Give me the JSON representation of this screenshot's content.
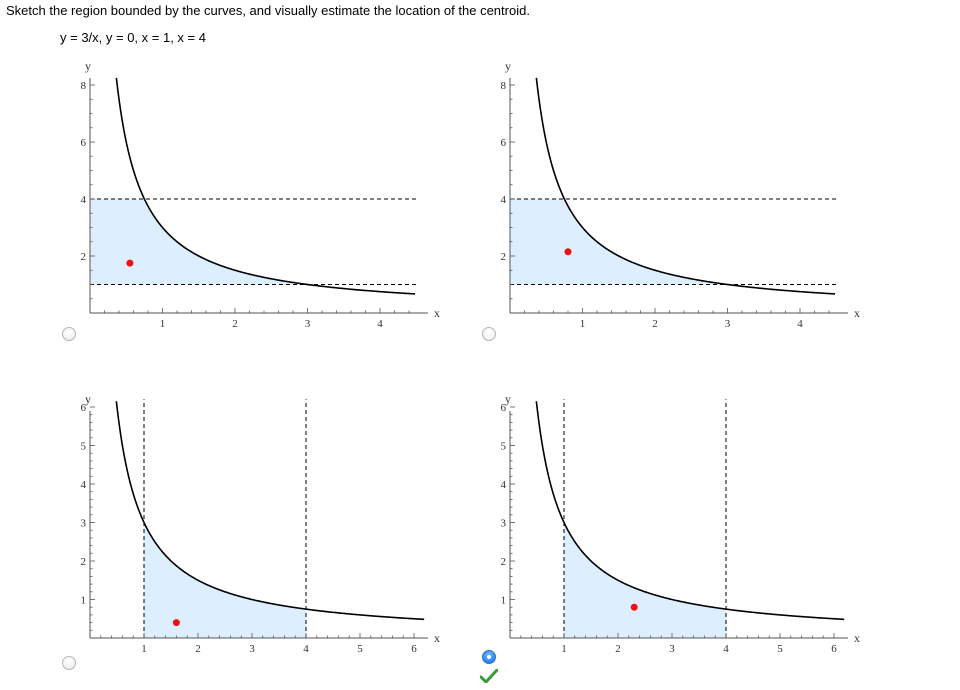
{
  "question": {
    "text": "Sketch the region bounded by the curves, and visually estimate the location of the centroid.",
    "equation": "y = 3/x,  y = 0,  x = 1,  x = 4"
  },
  "options": [
    {
      "id": "option-1",
      "selected": false,
      "correct": false,
      "chart_data": {
        "type": "area",
        "curve": "y = 3/x",
        "region": "between y = 1 and y = 4, left of curve",
        "xlabel": "x",
        "ylabel": "y",
        "xlim": [
          0,
          4.5
        ],
        "ylim": [
          0,
          8.3
        ],
        "xticks": [
          "1",
          "2",
          "3",
          "4"
        ],
        "yticks": [
          "2",
          "4",
          "6",
          "8"
        ],
        "xtick_values": [
          1,
          2,
          3,
          4
        ],
        "ytick_values": [
          2,
          4,
          6,
          8
        ],
        "dashed_lines": [
          "y = 1",
          "y = 4"
        ],
        "centroid": [
          0.55,
          1.75
        ]
      }
    },
    {
      "id": "option-2",
      "selected": false,
      "correct": false,
      "chart_data": {
        "type": "area",
        "curve": "y = 3/x",
        "region": "between y = 1 and y = 4, left of curve",
        "xlabel": "x",
        "ylabel": "y",
        "xlim": [
          0,
          4.5
        ],
        "ylim": [
          0,
          8.3
        ],
        "xticks": [
          "1",
          "2",
          "3",
          "4"
        ],
        "yticks": [
          "2",
          "4",
          "6",
          "8"
        ],
        "xtick_values": [
          1,
          2,
          3,
          4
        ],
        "ytick_values": [
          2,
          4,
          6,
          8
        ],
        "dashed_lines": [
          "y = 1",
          "y = 4"
        ],
        "centroid": [
          0.8,
          2.15
        ]
      }
    },
    {
      "id": "option-3",
      "selected": false,
      "correct": false,
      "chart_data": {
        "type": "area",
        "curve": "y = 3/x",
        "region": "between x = 1 and x = 4, under curve",
        "xlabel": "x",
        "ylabel": "y",
        "xlim": [
          0,
          6.2
        ],
        "ylim": [
          0,
          6.2
        ],
        "xticks": [
          "1",
          "2",
          "3",
          "4",
          "5",
          "6"
        ],
        "yticks": [
          "1",
          "2",
          "3",
          "4",
          "5",
          "6"
        ],
        "xtick_values": [
          1,
          2,
          3,
          4,
          5,
          6
        ],
        "ytick_values": [
          1,
          2,
          3,
          4,
          5,
          6
        ],
        "dashed_lines": [
          "x = 1",
          "x = 4"
        ],
        "centroid": [
          1.6,
          0.4
        ]
      }
    },
    {
      "id": "option-4",
      "selected": true,
      "correct": true,
      "chart_data": {
        "type": "area",
        "curve": "y = 3/x",
        "region": "between x = 1 and x = 4, under curve",
        "xlabel": "x",
        "ylabel": "y",
        "xlim": [
          0,
          6.2
        ],
        "ylim": [
          0,
          6.2
        ],
        "xticks": [
          "1",
          "2",
          "3",
          "4",
          "5",
          "6"
        ],
        "yticks": [
          "1",
          "2",
          "3",
          "4",
          "5",
          "6"
        ],
        "xtick_values": [
          1,
          2,
          3,
          4,
          5,
          6
        ],
        "ytick_values": [
          1,
          2,
          3,
          4,
          5,
          6
        ],
        "dashed_lines": [
          "x = 1",
          "x = 4"
        ],
        "centroid": [
          2.3,
          0.8
        ]
      }
    }
  ],
  "colors": {
    "region_fill": "#ddeeff",
    "curve": "#000000",
    "centroid": "#ee1111",
    "radio_selected": "#2f86ea",
    "check": "#3a9b3a"
  },
  "icons": {
    "check": "check-icon"
  }
}
